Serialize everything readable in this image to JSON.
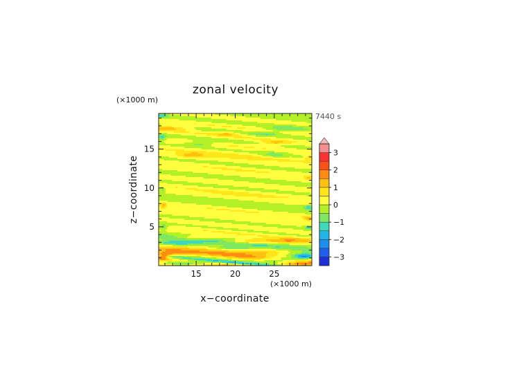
{
  "chart_data": {
    "type": "heatmap",
    "title": "zonal velocity",
    "xlabel": "x−coordinate",
    "ylabel": "z−coordinate",
    "x_unit": "(×1000 m)",
    "y_unit": "(×1000 m)",
    "time_label": "7440 s",
    "xlim": [
      10.2,
      29.8
    ],
    "ylim": [
      0,
      19.6
    ],
    "x_ticks": [
      {
        "value": 15,
        "label": "15"
      },
      {
        "value": 20,
        "label": "20"
      },
      {
        "value": 25,
        "label": "25"
      }
    ],
    "y_ticks": [
      {
        "value": 5,
        "label": "5"
      },
      {
        "value": 10,
        "label": "10"
      },
      {
        "value": 15,
        "label": "15"
      }
    ],
    "colorbar": {
      "levels": [
        -3.5,
        -3,
        -2.5,
        -2,
        -1.5,
        -1,
        -0.5,
        0,
        0.5,
        1,
        1.5,
        2,
        2.5,
        3,
        3.5
      ],
      "colors": [
        "#1a1aa0",
        "#2030d8",
        "#1f5ff0",
        "#1c8ef0",
        "#22b5e8",
        "#3fd8b8",
        "#7fe860",
        "#b4f026",
        "#ffff40",
        "#ffe61a",
        "#ffc010",
        "#ff8c10",
        "#ff5018",
        "#ff3030",
        "#f49090",
        "#f8b8b8"
      ],
      "tick_labels": [
        {
          "value": 3,
          "label": "3"
        },
        {
          "value": 2,
          "label": "2"
        },
        {
          "value": 1,
          "label": "1"
        },
        {
          "value": 0,
          "label": "0"
        },
        {
          "value": -1,
          "label": "−1"
        },
        {
          "value": -2,
          "label": "−2"
        },
        {
          "value": -3,
          "label": "−3"
        }
      ],
      "extend": "max"
    },
    "field": {
      "z_bands": [
        {
          "z": 0.0,
          "v": 1.2
        },
        {
          "z": 0.4,
          "v": -1.6
        },
        {
          "z": 0.9,
          "v": 0.6
        },
        {
          "z": 1.3,
          "v": 2.0
        },
        {
          "z": 1.7,
          "v": 1.3
        },
        {
          "z": 2.1,
          "v": 0.2
        },
        {
          "z": 2.5,
          "v": -0.4
        },
        {
          "z": 2.9,
          "v": -1.3
        },
        {
          "z": 3.3,
          "v": -0.6
        },
        {
          "z": 3.7,
          "v": 0.3
        },
        {
          "z": 4.2,
          "v": 0.6
        },
        {
          "z": 4.6,
          "v": -0.2
        },
        {
          "z": 5.1,
          "v": 0.4
        },
        {
          "z": 5.6,
          "v": -0.3
        },
        {
          "z": 6.1,
          "v": 0.5
        },
        {
          "z": 6.6,
          "v": 0.2
        },
        {
          "z": 7.1,
          "v": 0.6
        },
        {
          "z": 7.6,
          "v": -0.2
        },
        {
          "z": 8.2,
          "v": -0.4
        },
        {
          "z": 8.8,
          "v": 0.4
        },
        {
          "z": 9.4,
          "v": 0.7
        },
        {
          "z": 10.0,
          "v": -0.3
        },
        {
          "z": 10.6,
          "v": 0.5
        },
        {
          "z": 11.2,
          "v": -0.4
        },
        {
          "z": 11.8,
          "v": 0.3
        },
        {
          "z": 12.4,
          "v": 0.6
        },
        {
          "z": 13.0,
          "v": -0.3
        },
        {
          "z": 13.6,
          "v": 0.4
        },
        {
          "z": 14.2,
          "v": 0.8
        },
        {
          "z": 14.8,
          "v": -0.2
        },
        {
          "z": 15.4,
          "v": 0.6
        },
        {
          "z": 16.0,
          "v": -0.4
        },
        {
          "z": 16.6,
          "v": 0.7
        },
        {
          "z": 17.2,
          "v": -0.5
        },
        {
          "z": 17.8,
          "v": 0.6
        },
        {
          "z": 18.4,
          "v": -0.4
        },
        {
          "z": 19.0,
          "v": 0.4
        },
        {
          "z": 19.6,
          "v": -0.5
        }
      ],
      "blobs": [
        {
          "x": 11.5,
          "z": 17.7,
          "rx": 2.8,
          "rz": 0.35,
          "v": 1.2
        },
        {
          "x": 19.0,
          "z": 17.0,
          "rx": 1.5,
          "rz": 0.3,
          "v": 1.0
        },
        {
          "x": 15.5,
          "z": 15.7,
          "rx": 1.8,
          "rz": 0.35,
          "v": -0.9
        },
        {
          "x": 25.0,
          "z": 15.8,
          "rx": 1.8,
          "rz": 0.35,
          "v": 1.0
        },
        {
          "x": 26.5,
          "z": 17.6,
          "rx": 2.5,
          "rz": 0.35,
          "v": -0.9
        },
        {
          "x": 24.0,
          "z": 17.0,
          "rx": 1.4,
          "rz": 0.3,
          "v": -0.8
        },
        {
          "x": 14.5,
          "z": 14.2,
          "rx": 1.6,
          "rz": 0.35,
          "v": 1.1
        },
        {
          "x": 25.0,
          "z": 14.3,
          "rx": 1.6,
          "rz": 0.35,
          "v": -0.8
        },
        {
          "x": 10.6,
          "z": 16.5,
          "rx": 0.6,
          "rz": 0.4,
          "v": -1.2
        },
        {
          "x": 10.6,
          "z": 19.3,
          "rx": 0.8,
          "rz": 0.35,
          "v": -1.1
        },
        {
          "x": 10.7,
          "z": 9.8,
          "rx": 0.4,
          "rz": 0.35,
          "v": -1.0
        },
        {
          "x": 10.8,
          "z": 5.0,
          "rx": 0.6,
          "rz": 0.4,
          "v": -1.1
        },
        {
          "x": 10.8,
          "z": 7.7,
          "rx": 0.4,
          "rz": 0.4,
          "v": 1.0
        },
        {
          "x": 29.4,
          "z": 7.5,
          "rx": 0.6,
          "rz": 0.35,
          "v": -1.1
        },
        {
          "x": 29.3,
          "z": 6.1,
          "rx": 0.6,
          "rz": 0.3,
          "v": 1.1
        },
        {
          "x": 29.4,
          "z": 4.9,
          "rx": 0.6,
          "rz": 0.3,
          "v": -1.0
        },
        {
          "x": 29.4,
          "z": 13.9,
          "rx": 0.5,
          "rz": 0.3,
          "v": 1.0
        },
        {
          "x": 29.4,
          "z": 11.3,
          "rx": 0.5,
          "rz": 0.3,
          "v": 0.9
        },
        {
          "x": 27.0,
          "z": 3.2,
          "rx": 3.0,
          "rz": 0.35,
          "v": 1.3
        },
        {
          "x": 26.0,
          "z": 0.8,
          "rx": 3.0,
          "rz": 0.45,
          "v": -1.5
        },
        {
          "x": 28.8,
          "z": 1.2,
          "rx": 1.4,
          "rz": 0.35,
          "v": -2.2
        },
        {
          "x": 12.0,
          "z": 1.6,
          "rx": 2.0,
          "rz": 0.35,
          "v": 1.3
        },
        {
          "x": 10.8,
          "z": 1.2,
          "rx": 0.8,
          "rz": 0.4,
          "v": 2.4
        },
        {
          "x": 12.5,
          "z": 2.9,
          "rx": 3.5,
          "rz": 0.35,
          "v": -1.4
        },
        {
          "x": 15.0,
          "z": 3.6,
          "rx": 2.5,
          "rz": 0.3,
          "v": 0.9
        },
        {
          "x": 21.5,
          "z": 3.1,
          "rx": 3.0,
          "rz": 0.3,
          "v": 1.2
        },
        {
          "x": 19.5,
          "z": 2.3,
          "rx": 2.5,
          "rz": 0.25,
          "v": -0.8
        },
        {
          "x": 13.5,
          "z": 0.3,
          "rx": 3.5,
          "rz": 0.3,
          "v": -1.6
        },
        {
          "x": 28.0,
          "z": 0.15,
          "rx": 2.5,
          "rz": 0.3,
          "v": 1.4
        },
        {
          "x": 24.0,
          "z": 1.8,
          "rx": 2.5,
          "rz": 0.3,
          "v": 0.9
        }
      ]
    }
  }
}
